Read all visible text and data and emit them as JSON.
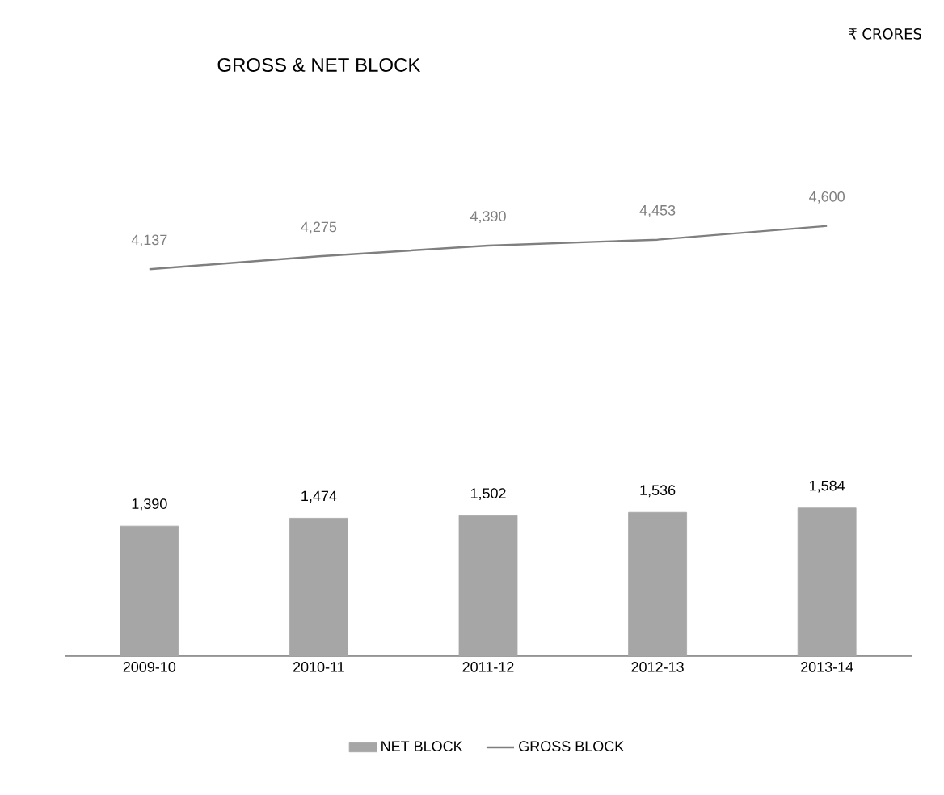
{
  "chart_data": {
    "type": "bar",
    "title": "GROSS & NET BLOCK",
    "annotations": [
      "₹ CRORES"
    ],
    "categories": [
      "2009-10",
      "2010-11",
      "2011-12",
      "2012-13",
      "2013-14"
    ],
    "series": [
      {
        "name": "NET BLOCK",
        "color": "#a6a6a6",
        "values": [
          1390,
          1474,
          1502,
          1536,
          1584
        ],
        "value_labels": [
          "1,390",
          "1,474",
          "1,502",
          "1,536",
          "1,584"
        ]
      },
      {
        "name": "GROSS BLOCK",
        "type": "line",
        "color": "#7f7f7f",
        "values": [
          4137,
          4275,
          4390,
          4453,
          4600
        ],
        "value_labels": [
          "4,137",
          "4,275",
          "4,390",
          "4,453",
          "4,600"
        ]
      }
    ],
    "legend": "bottom",
    "tick_labels": "x",
    "marker": "none"
  }
}
